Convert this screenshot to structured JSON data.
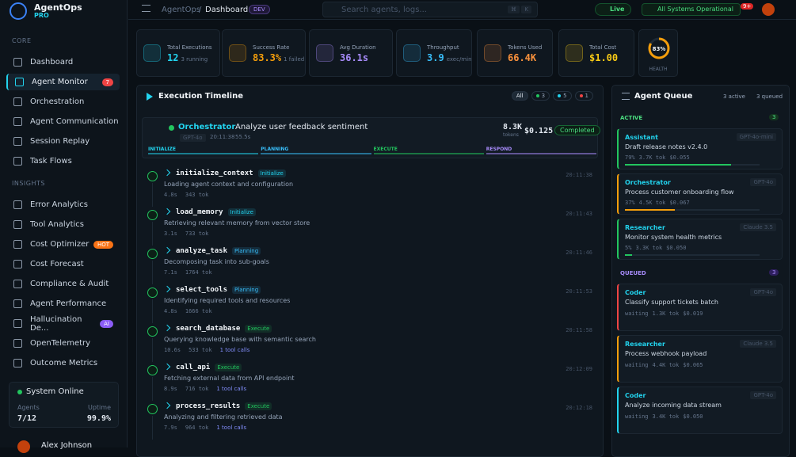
{
  "brand": {
    "name": "AgentOps",
    "tier": "PRO"
  },
  "sidebar": {
    "sections": [
      {
        "title": "CORE",
        "items": [
          {
            "label": "Dashboard"
          },
          {
            "label": "Agent Monitor",
            "badge": "7"
          },
          {
            "label": "Orchestration"
          },
          {
            "label": "Agent Communication"
          },
          {
            "label": "Session Replay"
          },
          {
            "label": "Task Flows"
          }
        ]
      },
      {
        "title": "INSIGHTS",
        "items": [
          {
            "label": "Error Analytics"
          },
          {
            "label": "Tool Analytics"
          },
          {
            "label": "Cost Optimizer",
            "badge": "HOT"
          },
          {
            "label": "Cost Forecast"
          },
          {
            "label": "Compliance & Audit"
          },
          {
            "label": "Agent Performance"
          },
          {
            "label": "Hallucination De...",
            "badge": "AI"
          },
          {
            "label": "OpenTelemetry"
          },
          {
            "label": "Outcome Metrics"
          }
        ]
      }
    ],
    "status": {
      "title": "System Online",
      "agents_label": "Agents",
      "agents": "7/12",
      "uptime_label": "Uptime",
      "uptime": "99.9%"
    },
    "user": "Alex Johnson"
  },
  "topbar": {
    "crumb_root": "AgentOps",
    "crumb_sep": "/",
    "crumb_page": "Dashboard",
    "env": "DEV",
    "search": "Search agents, logs...",
    "shortcut": [
      "⌘",
      "K"
    ],
    "live": "Live",
    "systems": "All Systems Operational",
    "notifications": "9+"
  },
  "stats": [
    {
      "label": "Total Executions",
      "value": "12",
      "sub": "3 running",
      "color": "#22d3ee"
    },
    {
      "label": "Success Rate",
      "value": "83.3%",
      "sub": "1 failed",
      "color": "#f59e0b"
    },
    {
      "label": "Avg Duration",
      "value": "36.1s",
      "sub": "",
      "color": "#a78bfa"
    },
    {
      "label": "Throughput",
      "value": "3.9",
      "sub": "exec/min",
      "color": "#38bdf8"
    },
    {
      "label": "Tokens Used",
      "value": "66.4K",
      "sub": "",
      "color": "#fb923c"
    },
    {
      "label": "Total Cost",
      "value": "$1.00",
      "sub": "",
      "color": "#facc15"
    }
  ],
  "health": {
    "value": "83%",
    "label": "HEALTH"
  },
  "timeline": {
    "title": "Execution Timeline",
    "filters": [
      "All",
      "3",
      "5",
      "1"
    ],
    "execution": {
      "agent": "Orchestrator",
      "task": "Analyze user feedback sentiment",
      "model": "GPT-4o",
      "time": "20:11:38",
      "duration": "55.5s",
      "tokens": "8.3K",
      "tokens_label": "tokens",
      "cost": "$0.125",
      "status": "Completed"
    },
    "phases": [
      "INITIALIZE",
      "PLANNING",
      "EXECUTE",
      "RESPOND"
    ],
    "steps": [
      {
        "name": "initialize_context",
        "phase": "Initialize",
        "desc": "Loading agent context and configuration",
        "duration": "4.8s",
        "tokens": "343 tok",
        "time": "20:11:38"
      },
      {
        "name": "load_memory",
        "phase": "Initialize",
        "desc": "Retrieving relevant memory from vector store",
        "duration": "3.1s",
        "tokens": "733 tok",
        "time": "20:11:43"
      },
      {
        "name": "analyze_task",
        "phase": "Planning",
        "desc": "Decomposing task into sub-goals",
        "duration": "7.1s",
        "tokens": "1764 tok",
        "time": "20:11:46"
      },
      {
        "name": "select_tools",
        "phase": "Planning",
        "desc": "Identifying required tools and resources",
        "duration": "4.8s",
        "tokens": "1666 tok",
        "time": "20:11:53"
      },
      {
        "name": "search_database",
        "phase": "Execute",
        "desc": "Querying knowledge base with semantic search",
        "duration": "10.6s",
        "tokens": "533 tok",
        "tools": "1 tool calls",
        "time": "20:11:58"
      },
      {
        "name": "call_api",
        "phase": "Execute",
        "desc": "Fetching external data from API endpoint",
        "duration": "8.9s",
        "tokens": "716 tok",
        "tools": "1 tool calls",
        "time": "20:12:09"
      },
      {
        "name": "process_results",
        "phase": "Execute",
        "desc": "Analyzing and filtering retrieved data",
        "duration": "7.9s",
        "tokens": "964 tok",
        "tools": "1 tool calls",
        "time": "20:12:18"
      }
    ]
  },
  "queue": {
    "title": "Agent Queue",
    "active_count": "3 active",
    "queued_count": "3 queued",
    "groups": [
      {
        "title": "ACTIVE",
        "count": "3",
        "items": [
          {
            "agent": "Assistant",
            "task": "Draft release notes v2.4.0",
            "model": "GPT-4o-mini",
            "progress": "79%",
            "tokens": "3.7K tok",
            "cost": "$0.055",
            "color": "#22c55e"
          },
          {
            "agent": "Orchestrator",
            "task": "Process customer onboarding flow",
            "model": "GPT-4o",
            "progress": "37%",
            "tokens": "4.5K tok",
            "cost": "$0.067",
            "color": "#f59e0b"
          },
          {
            "agent": "Researcher",
            "task": "Monitor system health metrics",
            "model": "Claude 3.5",
            "progress": "5%",
            "tokens": "3.3K tok",
            "cost": "$0.050",
            "color": "#22c55e"
          }
        ]
      },
      {
        "title": "QUEUED",
        "count": "3",
        "items": [
          {
            "agent": "Coder",
            "task": "Classify support tickets batch",
            "model": "GPT-4o",
            "progress": "waiting",
            "tokens": "1.3K tok",
            "cost": "$0.019",
            "color": "#ef4444"
          },
          {
            "agent": "Researcher",
            "task": "Process webhook payload",
            "model": "Claude 3.5",
            "progress": "waiting",
            "tokens": "4.4K tok",
            "cost": "$0.065",
            "color": "#f59e0b"
          },
          {
            "agent": "Coder",
            "task": "Analyze incoming data stream",
            "model": "GPT-4o",
            "progress": "waiting",
            "tokens": "3.4K tok",
            "cost": "$0.050",
            "color": "#22d3ee"
          }
        ]
      }
    ]
  }
}
